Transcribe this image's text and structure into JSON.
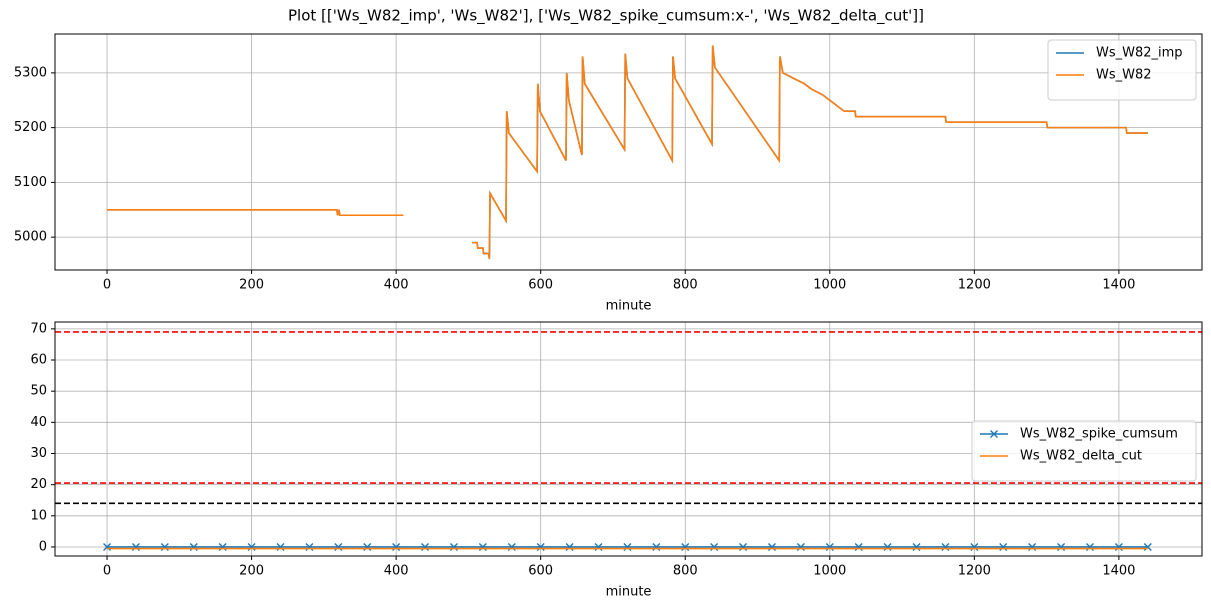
{
  "title": "Plot [['Ws_W82_imp', 'Ws_W82'], ['Ws_W82_spike_cumsum:x-', 'Ws_W82_delta_cut']]",
  "chart_data": [
    {
      "type": "line",
      "xlabel": "minute",
      "grid": true,
      "legend": "upper right",
      "xlim": [
        -72,
        1515
      ],
      "ylim": [
        4940,
        5371
      ],
      "xticks": [
        0,
        200,
        400,
        600,
        800,
        1000,
        1200,
        1400
      ],
      "yticks": [
        5000,
        5100,
        5200,
        5300
      ],
      "x": [
        0,
        318,
        319,
        321,
        322,
        410,
        460,
        505,
        512,
        513,
        520,
        521,
        528,
        529,
        530,
        552,
        553,
        556,
        595,
        596,
        599,
        635,
        636,
        639,
        657,
        658,
        661,
        716,
        717,
        720,
        782,
        783,
        786,
        837,
        838,
        841,
        930,
        931,
        935,
        950,
        965,
        975,
        990,
        1000,
        1010,
        1020,
        1035,
        1036,
        1160,
        1161,
        1300,
        1301,
        1410,
        1411,
        1440
      ],
      "series": [
        {
          "name": "Ws_W82_imp",
          "color": "#1f77b4",
          "values": [
            5050,
            5050,
            5040,
            5050,
            5040,
            5040,
            null,
            4990,
            4990,
            4980,
            4980,
            4970,
            4970,
            4960,
            5080,
            5030,
            5230,
            5190,
            5120,
            5280,
            5230,
            5140,
            5300,
            5250,
            5150,
            5330,
            5280,
            5160,
            5335,
            5290,
            5140,
            5330,
            5290,
            5170,
            5350,
            5310,
            5140,
            5330,
            5300,
            5290,
            5280,
            5270,
            5260,
            5250,
            5240,
            5230,
            5230,
            5220,
            5220,
            5210,
            5210,
            5200,
            5200,
            5190,
            5190
          ]
        },
        {
          "name": "Ws_W82",
          "color": "#ff7f0e",
          "values": [
            5050,
            5050,
            5040,
            5050,
            5040,
            5040,
            null,
            4990,
            4990,
            4980,
            4980,
            4970,
            4970,
            4960,
            5080,
            5030,
            5230,
            5190,
            5120,
            5280,
            5230,
            5140,
            5300,
            5250,
            5150,
            5330,
            5280,
            5160,
            5335,
            5290,
            5140,
            5330,
            5290,
            5170,
            5350,
            5310,
            5140,
            5330,
            5300,
            5290,
            5280,
            5270,
            5260,
            5250,
            5240,
            5230,
            5230,
            5220,
            5220,
            5210,
            5210,
            5200,
            5200,
            5190,
            5190
          ]
        }
      ]
    },
    {
      "type": "line",
      "xlabel": "minute",
      "grid": true,
      "legend": "center right",
      "xlim": [
        -72,
        1515
      ],
      "ylim": [
        -2.9,
        72.2
      ],
      "xticks": [
        0,
        200,
        400,
        600,
        800,
        1000,
        1200,
        1400
      ],
      "yticks": [
        0,
        10,
        20,
        30,
        40,
        50,
        60,
        70
      ],
      "x": [
        0,
        40,
        80,
        120,
        160,
        200,
        240,
        280,
        320,
        360,
        400,
        440,
        480,
        520,
        560,
        600,
        640,
        680,
        720,
        760,
        800,
        840,
        880,
        920,
        960,
        1000,
        1040,
        1080,
        1120,
        1160,
        1200,
        1240,
        1280,
        1320,
        1360,
        1400,
        1440
      ],
      "series": [
        {
          "name": "Ws_W82_spike_cumsum",
          "color": "#1f77b4",
          "marker": "x",
          "values": [
            0,
            0,
            0,
            0,
            0,
            0,
            0,
            0,
            0,
            0,
            0,
            0,
            0,
            0,
            0,
            0,
            0,
            0,
            0,
            0,
            0,
            0,
            0,
            0,
            0,
            0,
            0,
            0,
            0,
            0,
            0,
            0,
            0,
            0,
            0,
            0,
            0
          ]
        },
        {
          "name": "Ws_W82_delta_cut",
          "color": "#ff7f0e",
          "values": [
            -0.5,
            -0.5,
            -0.5,
            -0.5,
            -0.5,
            -0.5,
            -0.5,
            -0.5,
            -0.5,
            -0.5,
            -0.5,
            -0.5,
            -0.5,
            -0.5,
            -0.5,
            -0.5,
            -0.5,
            -0.5,
            -0.5,
            -0.5,
            -0.5,
            -0.5,
            -0.5,
            -0.5,
            -0.5,
            -0.5,
            -0.5,
            -0.5,
            -0.5,
            -0.5,
            -0.5,
            -0.5,
            -0.5,
            -0.5,
            -0.5,
            -0.5,
            -0.5
          ]
        }
      ],
      "hlines": [
        {
          "value": 69,
          "color": "red"
        },
        {
          "value": 20.5,
          "color": "red"
        },
        {
          "value": 14,
          "color": "black"
        }
      ]
    }
  ]
}
